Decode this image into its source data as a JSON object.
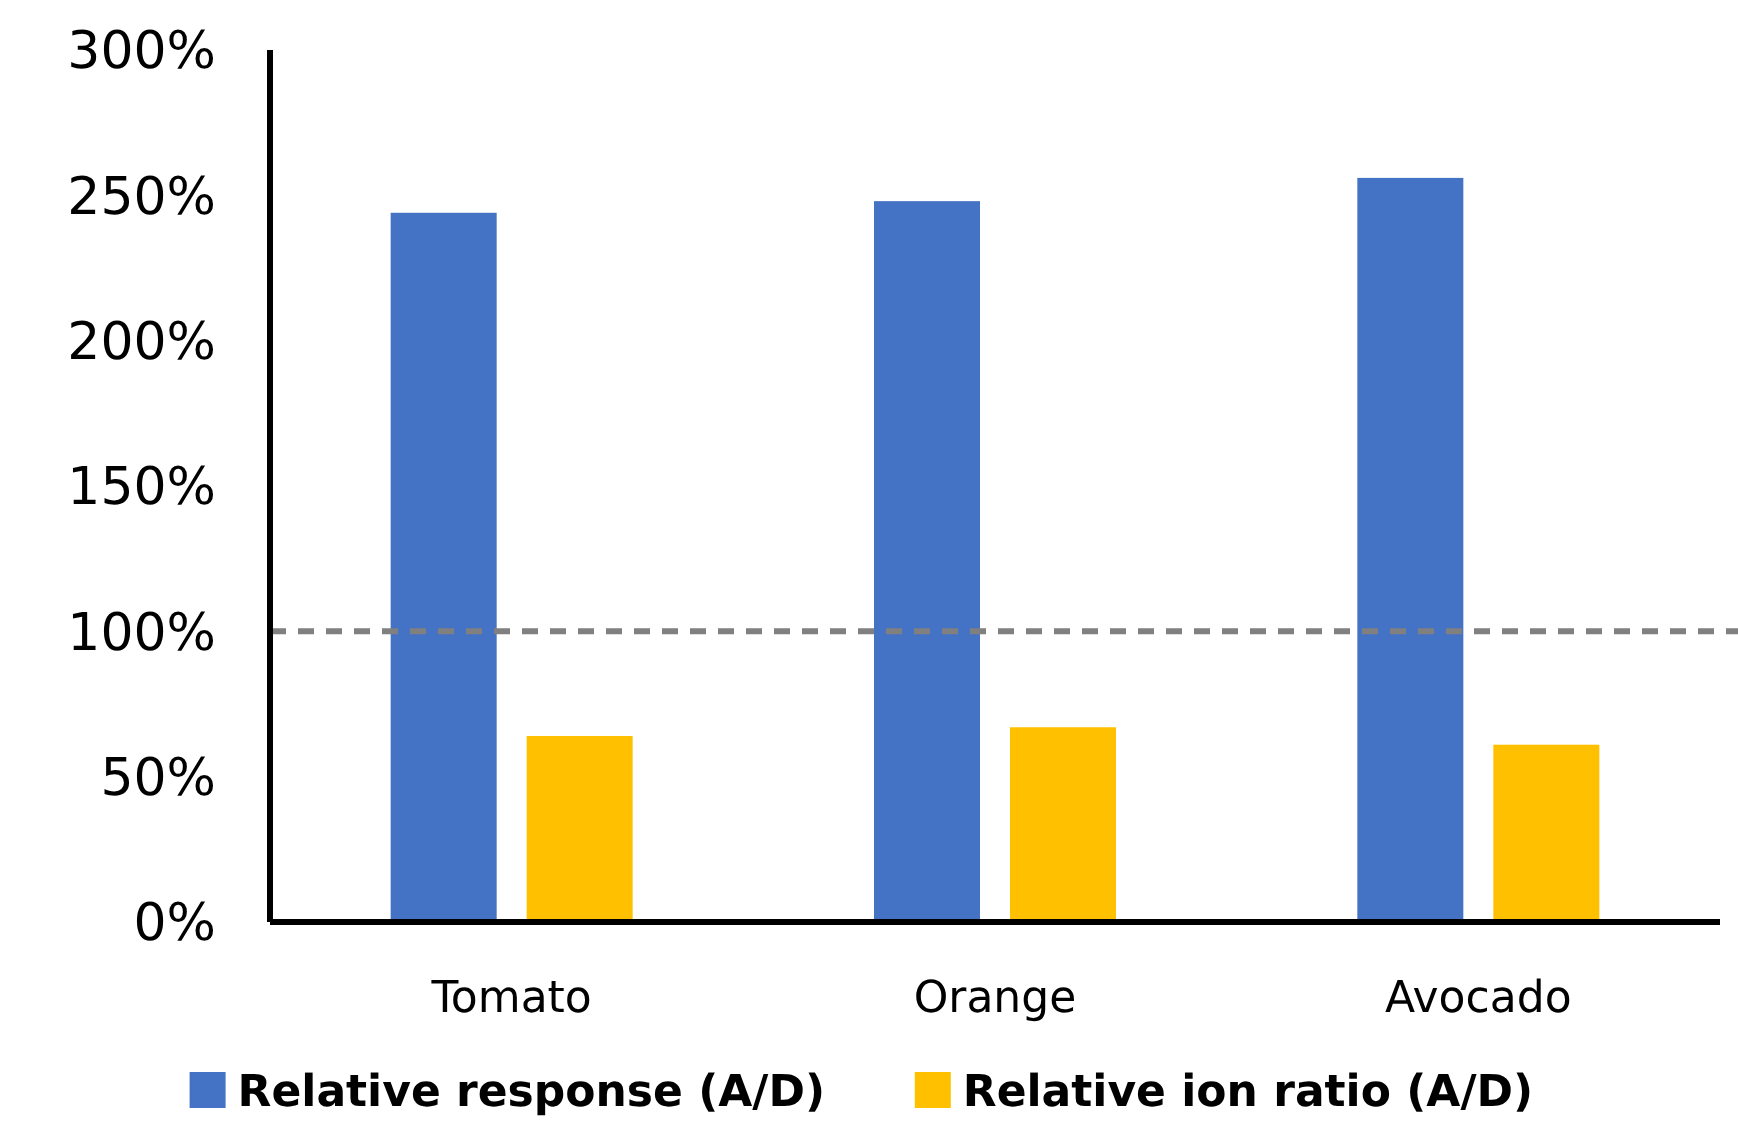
{
  "chart_data": {
    "type": "bar",
    "categories": [
      "Tomato",
      "Orange",
      "Avocado"
    ],
    "series": [
      {
        "name": "Relative response (A/D)",
        "color": "#4472c4",
        "values": [
          244,
          248,
          256
        ]
      },
      {
        "name": "Relative ion ratio (A/D)",
        "color": "#ffc000",
        "values": [
          64,
          67,
          61
        ]
      }
    ],
    "ylim": [
      0,
      300
    ],
    "yticks": [
      {
        "value": 0,
        "label": "0%"
      },
      {
        "value": 50,
        "label": "50%"
      },
      {
        "value": 100,
        "label": "100%"
      },
      {
        "value": 150,
        "label": "150%"
      },
      {
        "value": 200,
        "label": "200%"
      },
      {
        "value": 250,
        "label": "250%"
      },
      {
        "value": 300,
        "label": "300%"
      }
    ],
    "ref_lines": [
      {
        "axis": "y",
        "value": 100,
        "color": "#808080",
        "line_style": "dashed"
      }
    ],
    "grid": false,
    "legend": "bottom"
  }
}
